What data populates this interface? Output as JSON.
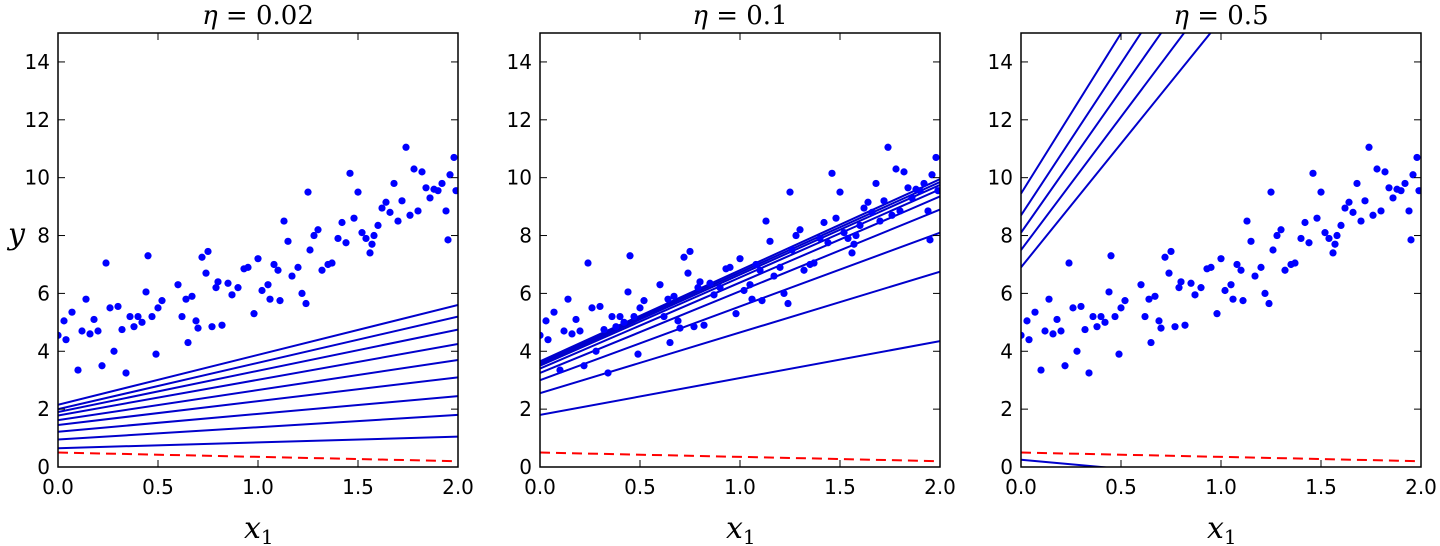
{
  "figure": {
    "ylabel": "y",
    "xlabel_main": "x",
    "xlabel_sub": "1"
  },
  "chart_data": [
    {
      "type": "scatter",
      "title": "η = 0.02",
      "title_eta": "η",
      "title_rest": " = 0.02",
      "xlim": [
        0,
        2
      ],
      "ylim": [
        0,
        15
      ],
      "x_ticks": [
        "0.0",
        "0.5",
        "1.0",
        "1.5",
        "2.0"
      ],
      "y_ticks": [
        "0",
        "2",
        "4",
        "6",
        "8",
        "10",
        "12",
        "14"
      ],
      "points_color": "#0000ff",
      "line_color": "#0000cc",
      "predictions": [
        {
          "y0": 0.65,
          "y2": 1.05
        },
        {
          "y0": 0.95,
          "y2": 1.8
        },
        {
          "y0": 1.22,
          "y2": 2.45
        },
        {
          "y0": 1.45,
          "y2": 3.1
        },
        {
          "y0": 1.62,
          "y2": 3.7
        },
        {
          "y0": 1.78,
          "y2": 4.25
        },
        {
          "y0": 1.9,
          "y2": 4.75
        },
        {
          "y0": 2.0,
          "y2": 5.2
        },
        {
          "y0": 2.15,
          "y2": 5.6
        }
      ],
      "reference_line": {
        "y0": 0.5,
        "y2": 0.2,
        "color": "#ff0000",
        "style": "dashed"
      }
    },
    {
      "type": "scatter",
      "title": "η = 0.1",
      "title_eta": "η",
      "title_rest": " = 0.1",
      "xlim": [
        0,
        2
      ],
      "ylim": [
        0,
        15
      ],
      "x_ticks": [
        "0.0",
        "0.5",
        "1.0",
        "1.5",
        "2.0"
      ],
      "y_ticks": [
        "0",
        "2",
        "4",
        "6",
        "8",
        "10",
        "12",
        "14"
      ],
      "points_color": "#0000ff",
      "line_color": "#0000cc",
      "predictions": [
        {
          "y0": 1.8,
          "y2": 4.35
        },
        {
          "y0": 2.55,
          "y2": 6.75
        },
        {
          "y0": 3.0,
          "y2": 8.1
        },
        {
          "y0": 3.25,
          "y2": 8.9
        },
        {
          "y0": 3.4,
          "y2": 9.35
        },
        {
          "y0": 3.5,
          "y2": 9.6
        },
        {
          "y0": 3.55,
          "y2": 9.75
        },
        {
          "y0": 3.6,
          "y2": 9.85
        },
        {
          "y0": 3.65,
          "y2": 9.95
        }
      ],
      "reference_line": {
        "y0": 0.5,
        "y2": 0.2,
        "color": "#ff0000",
        "style": "dashed"
      }
    },
    {
      "type": "scatter",
      "title": "η = 0.5",
      "title_eta": "η",
      "title_rest": " = 0.5",
      "xlim": [
        0,
        2
      ],
      "ylim": [
        0,
        15
      ],
      "x_ticks": [
        "0.0",
        "0.5",
        "1.0",
        "1.5",
        "2.0"
      ],
      "y_ticks": [
        "0",
        "2",
        "4",
        "6",
        "8",
        "10",
        "12",
        "14"
      ],
      "points_color": "#0000ff",
      "line_color": "#0000cc",
      "predictions": [
        {
          "y0": 0.25,
          "y2": -1.0
        },
        {
          "y0": 6.9,
          "y2": 24.0
        },
        {
          "y0": 7.5,
          "y2": 25.9
        },
        {
          "y0": 8.1,
          "y2": 27.8
        },
        {
          "y0": 8.7,
          "y2": 29.7
        },
        {
          "y0": 9.45,
          "y2": 31.6
        }
      ],
      "reference_line": {
        "y0": 0.5,
        "y2": 0.2,
        "color": "#ff0000",
        "style": "dashed"
      }
    }
  ],
  "scatter_points": [
    [
      0.0,
      4.55
    ],
    [
      0.03,
      5.05
    ],
    [
      0.04,
      4.4
    ],
    [
      0.07,
      5.35
    ],
    [
      0.1,
      3.35
    ],
    [
      0.12,
      4.7
    ],
    [
      0.14,
      5.8
    ],
    [
      0.16,
      4.6
    ],
    [
      0.18,
      5.1
    ],
    [
      0.2,
      4.7
    ],
    [
      0.22,
      3.5
    ],
    [
      0.24,
      7.05
    ],
    [
      0.26,
      5.5
    ],
    [
      0.28,
      4.0
    ],
    [
      0.3,
      5.55
    ],
    [
      0.32,
      4.75
    ],
    [
      0.34,
      3.25
    ],
    [
      0.36,
      5.2
    ],
    [
      0.38,
      4.85
    ],
    [
      0.4,
      5.2
    ],
    [
      0.42,
      5.0
    ],
    [
      0.44,
      6.05
    ],
    [
      0.45,
      7.3
    ],
    [
      0.47,
      5.2
    ],
    [
      0.49,
      3.9
    ],
    [
      0.5,
      5.5
    ],
    [
      0.52,
      5.75
    ],
    [
      0.6,
      6.3
    ],
    [
      0.62,
      5.2
    ],
    [
      0.64,
      5.8
    ],
    [
      0.65,
      4.3
    ],
    [
      0.67,
      5.9
    ],
    [
      0.69,
      5.05
    ],
    [
      0.7,
      4.8
    ],
    [
      0.72,
      7.25
    ],
    [
      0.74,
      6.7
    ],
    [
      0.75,
      7.45
    ],
    [
      0.77,
      4.85
    ],
    [
      0.79,
      6.2
    ],
    [
      0.8,
      6.4
    ],
    [
      0.82,
      4.9
    ],
    [
      0.85,
      6.35
    ],
    [
      0.87,
      5.95
    ],
    [
      0.9,
      6.2
    ],
    [
      0.93,
      6.85
    ],
    [
      0.95,
      6.9
    ],
    [
      0.98,
      5.3
    ],
    [
      1.0,
      7.2
    ],
    [
      1.02,
      6.1
    ],
    [
      1.05,
      6.3
    ],
    [
      1.06,
      5.8
    ],
    [
      1.08,
      7.0
    ],
    [
      1.1,
      6.8
    ],
    [
      1.11,
      5.75
    ],
    [
      1.13,
      8.5
    ],
    [
      1.15,
      7.8
    ],
    [
      1.17,
      6.6
    ],
    [
      1.2,
      6.9
    ],
    [
      1.22,
      6.0
    ],
    [
      1.24,
      5.65
    ],
    [
      1.25,
      9.5
    ],
    [
      1.26,
      7.5
    ],
    [
      1.28,
      8.0
    ],
    [
      1.3,
      8.2
    ],
    [
      1.32,
      6.8
    ],
    [
      1.35,
      7.0
    ],
    [
      1.37,
      7.05
    ],
    [
      1.4,
      7.9
    ],
    [
      1.42,
      8.45
    ],
    [
      1.44,
      7.75
    ],
    [
      1.46,
      10.15
    ],
    [
      1.48,
      8.6
    ],
    [
      1.5,
      9.5
    ],
    [
      1.52,
      8.1
    ],
    [
      1.54,
      7.9
    ],
    [
      1.56,
      7.4
    ],
    [
      1.57,
      7.7
    ],
    [
      1.58,
      8.0
    ],
    [
      1.6,
      8.35
    ],
    [
      1.62,
      8.95
    ],
    [
      1.64,
      9.15
    ],
    [
      1.66,
      8.8
    ],
    [
      1.68,
      9.8
    ],
    [
      1.7,
      8.5
    ],
    [
      1.72,
      9.2
    ],
    [
      1.74,
      11.05
    ],
    [
      1.76,
      8.7
    ],
    [
      1.78,
      10.3
    ],
    [
      1.8,
      8.85
    ],
    [
      1.82,
      10.2
    ],
    [
      1.84,
      9.65
    ],
    [
      1.86,
      9.3
    ],
    [
      1.88,
      9.6
    ],
    [
      1.9,
      9.55
    ],
    [
      1.92,
      9.8
    ],
    [
      1.94,
      8.85
    ],
    [
      1.95,
      7.85
    ],
    [
      1.96,
      10.1
    ],
    [
      1.98,
      10.7
    ],
    [
      1.99,
      9.55
    ]
  ]
}
